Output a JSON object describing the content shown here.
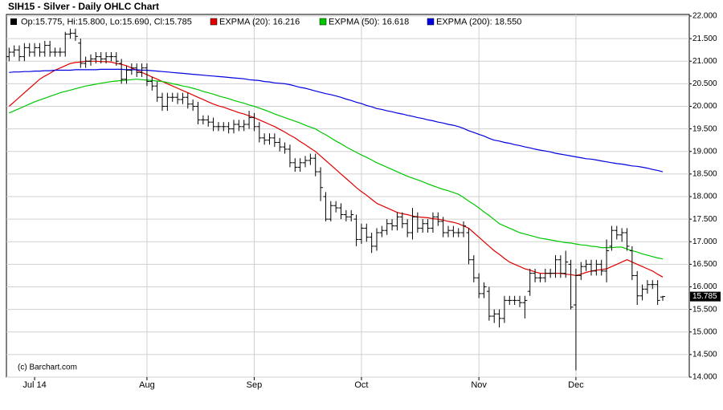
{
  "chart_data": {
    "type": "ohlc",
    "title": "SIH15 - Silver - Daily OHLC Chart",
    "ohlc_label": "Op:15.775, Hi:15.800, Lo:15.690, Cl:15.785",
    "last_price_label": "15.785",
    "annotation": "(c) Barchart.com",
    "ylim": [
      14,
      22
    ],
    "yticks": [
      {
        "value": 14,
        "label": "14.000"
      },
      {
        "value": 14.5,
        "label": "14.500"
      },
      {
        "value": 15,
        "label": "15.000"
      },
      {
        "value": 15.5,
        "label": "15.500"
      },
      {
        "value": 16,
        "label": "16.000"
      },
      {
        "value": 16.5,
        "label": "16.500"
      },
      {
        "value": 17,
        "label": "17.000"
      },
      {
        "value": 17.5,
        "label": "17.500"
      },
      {
        "value": 18,
        "label": "18.000"
      },
      {
        "value": 18.5,
        "label": "18.500"
      },
      {
        "value": 19,
        "label": "19.000"
      },
      {
        "value": 19.5,
        "label": "19.500"
      },
      {
        "value": 20,
        "label": "20.000"
      },
      {
        "value": 20.5,
        "label": "20.500"
      },
      {
        "value": 21,
        "label": "21.000"
      },
      {
        "value": 21.5,
        "label": "21.500"
      },
      {
        "value": 22,
        "label": "22.000"
      }
    ],
    "grid": true,
    "bar_color": "#000000",
    "categories": [
      null,
      null,
      null,
      null,
      null,
      "Jul 14",
      null,
      null,
      null,
      null,
      null,
      null,
      null,
      null,
      null,
      null,
      null,
      null,
      null,
      null,
      null,
      null,
      null,
      null,
      null,
      null,
      null,
      "Aug",
      null,
      null,
      null,
      null,
      null,
      null,
      null,
      null,
      null,
      null,
      null,
      null,
      null,
      null,
      null,
      null,
      null,
      null,
      null,
      null,
      "Sep",
      null,
      null,
      null,
      null,
      null,
      null,
      null,
      null,
      null,
      null,
      null,
      null,
      null,
      null,
      null,
      null,
      null,
      null,
      null,
      null,
      "Oct",
      null,
      null,
      null,
      null,
      null,
      null,
      null,
      null,
      null,
      null,
      null,
      null,
      null,
      null,
      null,
      null,
      null,
      null,
      null,
      null,
      null,
      null,
      "Nov",
      null,
      null,
      null,
      null,
      null,
      null,
      null,
      null,
      null,
      null,
      null,
      null,
      null,
      null,
      null,
      null,
      null,
      null,
      "Dec",
      null,
      null,
      null,
      null,
      null,
      null,
      null,
      null,
      null,
      null,
      null,
      null,
      null,
      null,
      null,
      null,
      null
    ],
    "open": [
      21.1,
      21.2,
      21.25,
      21.1,
      21.3,
      21.2,
      21.3,
      21.2,
      21.35,
      21.2,
      21.2,
      21.2,
      21.6,
      21.62,
      21.4,
      20.95,
      21.0,
      21.05,
      21.1,
      21.05,
      21.1,
      21.1,
      20.95,
      20.6,
      20.8,
      20.85,
      20.75,
      20.85,
      20.55,
      20.45,
      20.2,
      20.0,
      20.2,
      20.2,
      20.15,
      20.2,
      20.05,
      20.0,
      19.7,
      19.7,
      19.65,
      19.55,
      19.55,
      19.55,
      19.5,
      19.6,
      19.55,
      19.6,
      19.75,
      19.55,
      19.3,
      19.25,
      19.3,
      19.2,
      19.1,
      19.05,
      18.75,
      18.65,
      18.75,
      18.8,
      18.85,
      18.55,
      18.0,
      17.5,
      17.8,
      17.75,
      17.6,
      17.55,
      17.5,
      17.05,
      17.3,
      17.1,
      16.9,
      17.2,
      17.25,
      17.4,
      17.35,
      17.55,
      17.4,
      17.2,
      17.55,
      17.3,
      17.4,
      17.3,
      17.55,
      17.45,
      17.2,
      17.25,
      17.2,
      17.2,
      17.2,
      16.6,
      16.2,
      15.85,
      15.9,
      15.35,
      15.4,
      15.3,
      15.7,
      15.7,
      15.7,
      15.65,
      15.9,
      16.3,
      16.2,
      16.2,
      16.3,
      16.3,
      16.6,
      16.3,
      16.5,
      15.6,
      16.25,
      16.45,
      16.5,
      16.35,
      16.5,
      16.35,
      16.9,
      17.25,
      17.15,
      17.2,
      16.8,
      16.25,
      15.8,
      15.95,
      16.05,
      16.05,
      15.775
    ],
    "high": [
      21.3,
      21.35,
      21.35,
      21.4,
      21.4,
      21.4,
      21.4,
      21.45,
      21.45,
      21.3,
      21.3,
      21.65,
      21.72,
      21.72,
      21.5,
      21.1,
      21.15,
      21.2,
      21.2,
      21.2,
      21.2,
      21.2,
      21.05,
      20.9,
      20.95,
      20.95,
      20.95,
      20.95,
      20.65,
      20.55,
      20.3,
      20.3,
      20.3,
      20.3,
      20.3,
      20.3,
      20.15,
      20.1,
      19.8,
      19.8,
      19.75,
      19.65,
      19.65,
      19.65,
      19.7,
      19.7,
      19.7,
      19.9,
      19.85,
      19.65,
      19.4,
      19.4,
      19.4,
      19.3,
      19.2,
      19.15,
      18.85,
      18.85,
      18.9,
      18.95,
      18.95,
      18.65,
      18.1,
      17.9,
      17.9,
      17.85,
      17.7,
      17.7,
      17.6,
      17.4,
      17.4,
      17.2,
      17.3,
      17.35,
      17.5,
      17.5,
      17.65,
      17.65,
      17.5,
      17.75,
      17.65,
      17.5,
      17.5,
      17.65,
      17.65,
      17.55,
      17.35,
      17.35,
      17.3,
      17.45,
      17.3,
      16.7,
      16.3,
      16.1,
      16.0,
      15.5,
      15.5,
      15.8,
      15.8,
      15.8,
      15.8,
      15.8,
      16.4,
      16.4,
      16.3,
      16.4,
      16.4,
      16.7,
      16.7,
      16.8,
      16.6,
      16.4,
      16.55,
      16.6,
      16.6,
      16.6,
      16.6,
      17.05,
      17.35,
      17.35,
      17.3,
      17.3,
      16.9,
      16.35,
      16.05,
      16.15,
      16.15,
      16.15,
      15.8
    ],
    "low": [
      21.0,
      21.1,
      21.0,
      21.0,
      21.1,
      21.1,
      21.1,
      21.1,
      21.1,
      21.1,
      21.1,
      21.1,
      21.5,
      21.45,
      20.85,
      20.85,
      20.9,
      20.95,
      20.95,
      20.95,
      21.0,
      20.9,
      20.5,
      20.5,
      20.7,
      20.65,
      20.65,
      20.45,
      20.35,
      20.1,
      19.9,
      19.9,
      20.1,
      20.05,
      20.05,
      19.95,
      19.9,
      19.6,
      19.6,
      19.55,
      19.45,
      19.45,
      19.45,
      19.4,
      19.4,
      19.45,
      19.45,
      19.5,
      19.45,
      19.2,
      19.15,
      19.15,
      19.1,
      19.0,
      18.95,
      18.65,
      18.55,
      18.55,
      18.65,
      18.7,
      18.45,
      17.9,
      17.45,
      17.45,
      17.65,
      17.5,
      17.45,
      17.45,
      16.9,
      16.95,
      17.0,
      16.75,
      16.8,
      17.1,
      17.15,
      17.25,
      17.25,
      17.3,
      17.1,
      17.05,
      17.2,
      17.2,
      17.2,
      17.2,
      17.35,
      17.1,
      17.1,
      17.1,
      17.1,
      17.1,
      16.5,
      16.1,
      15.75,
      15.75,
      15.25,
      15.2,
      15.1,
      15.2,
      15.6,
      15.6,
      15.55,
      15.3,
      15.8,
      16.1,
      16.1,
      16.1,
      16.2,
      16.2,
      16.2,
      16.2,
      15.5,
      14.15,
      16.15,
      16.35,
      16.25,
      16.25,
      16.25,
      16.1,
      16.8,
      17.05,
      17.0,
      16.8,
      16.15,
      15.6,
      15.7,
      15.85,
      15.95,
      15.6,
      15.69
    ],
    "close": [
      21.2,
      21.25,
      21.1,
      21.3,
      21.2,
      21.3,
      21.2,
      21.35,
      21.2,
      21.2,
      21.2,
      21.6,
      21.62,
      21.55,
      20.95,
      21.0,
      21.05,
      21.1,
      21.05,
      21.1,
      21.1,
      21.0,
      20.6,
      20.8,
      20.85,
      20.75,
      20.85,
      20.55,
      20.45,
      20.2,
      20.0,
      20.2,
      20.2,
      20.15,
      20.2,
      20.05,
      20.0,
      19.7,
      19.7,
      19.65,
      19.55,
      19.55,
      19.55,
      19.5,
      19.6,
      19.55,
      19.6,
      19.75,
      19.55,
      19.3,
      19.25,
      19.3,
      19.2,
      19.1,
      19.05,
      18.75,
      18.65,
      18.75,
      18.8,
      18.85,
      18.55,
      18.2,
      17.5,
      17.8,
      17.75,
      17.6,
      17.55,
      17.6,
      17.05,
      17.3,
      17.1,
      16.9,
      17.2,
      17.25,
      17.4,
      17.35,
      17.55,
      17.4,
      17.2,
      17.55,
      17.3,
      17.4,
      17.3,
      17.55,
      17.45,
      17.2,
      17.25,
      17.2,
      17.2,
      17.35,
      16.6,
      16.2,
      15.85,
      16.0,
      15.35,
      15.4,
      15.3,
      15.7,
      15.7,
      15.7,
      15.65,
      15.7,
      16.3,
      16.2,
      16.2,
      16.3,
      16.3,
      16.6,
      16.3,
      16.55,
      15.55,
      16.25,
      16.45,
      16.5,
      16.35,
      16.5,
      16.35,
      16.8,
      17.25,
      17.15,
      17.2,
      16.9,
      16.25,
      15.8,
      15.95,
      16.05,
      16.05,
      15.7,
      15.785
    ],
    "series": [
      {
        "name": "EXPMA (20): 16.216",
        "color": "#e00000",
        "values": [
          20.0,
          20.1,
          20.2,
          20.3,
          20.4,
          20.5,
          20.6,
          20.67,
          20.73,
          20.8,
          20.85,
          20.9,
          20.95,
          20.97,
          20.98,
          21.0,
          21.0,
          21.0,
          20.99,
          20.99,
          20.98,
          20.95,
          20.93,
          20.9,
          20.85,
          20.8,
          20.75,
          20.7,
          20.65,
          20.6,
          20.55,
          20.5,
          20.45,
          20.4,
          20.35,
          20.3,
          20.25,
          20.2,
          20.15,
          20.1,
          20.05,
          20.01,
          19.98,
          19.94,
          19.9,
          19.86,
          19.83,
          19.79,
          19.75,
          19.7,
          19.65,
          19.6,
          19.55,
          19.49,
          19.43,
          19.36,
          19.3,
          19.22,
          19.15,
          19.07,
          19.0,
          18.9,
          18.8,
          18.7,
          18.6,
          18.5,
          18.4,
          18.3,
          18.2,
          18.11,
          18.03,
          17.94,
          17.85,
          17.8,
          17.75,
          17.7,
          17.65,
          17.62,
          17.6,
          17.57,
          17.55,
          17.54,
          17.53,
          17.51,
          17.5,
          17.48,
          17.45,
          17.43,
          17.4,
          17.35,
          17.3,
          17.2,
          17.1,
          17.0,
          16.9,
          16.8,
          16.72,
          16.63,
          16.55,
          16.5,
          16.45,
          16.4,
          16.37,
          16.33,
          16.3,
          16.3,
          16.3,
          16.3,
          16.3,
          16.28,
          16.27,
          16.25,
          16.28,
          16.32,
          16.35,
          16.37,
          16.38,
          16.4,
          16.45,
          16.5,
          16.55,
          16.6,
          16.55,
          16.5,
          16.45,
          16.4,
          16.35,
          16.28,
          16.216
        ]
      },
      {
        "name": "EXPMA (50): 16.618",
        "color": "#00c800",
        "values": [
          19.85,
          19.9,
          19.95,
          20.0,
          20.05,
          20.1,
          20.14,
          20.18,
          20.22,
          20.26,
          20.3,
          20.33,
          20.36,
          20.39,
          20.42,
          20.45,
          20.47,
          20.49,
          20.51,
          20.53,
          20.55,
          20.56,
          20.57,
          20.58,
          20.59,
          20.6,
          20.59,
          20.58,
          20.57,
          20.56,
          20.55,
          20.53,
          20.5,
          20.48,
          20.45,
          20.43,
          20.4,
          20.37,
          20.33,
          20.3,
          20.27,
          20.23,
          20.2,
          20.17,
          20.13,
          20.1,
          20.07,
          20.03,
          20.0,
          19.96,
          19.92,
          19.88,
          19.83,
          19.79,
          19.75,
          19.71,
          19.67,
          19.63,
          19.58,
          19.54,
          19.5,
          19.43,
          19.37,
          19.3,
          19.23,
          19.17,
          19.1,
          19.04,
          18.98,
          18.92,
          18.87,
          18.81,
          18.75,
          18.7,
          18.65,
          18.6,
          18.55,
          18.5,
          18.45,
          18.41,
          18.37,
          18.33,
          18.28,
          18.24,
          18.2,
          18.16,
          18.13,
          18.09,
          18.05,
          17.98,
          17.9,
          17.83,
          17.75,
          17.66,
          17.58,
          17.49,
          17.4,
          17.35,
          17.3,
          17.25,
          17.2,
          17.17,
          17.14,
          17.11,
          17.08,
          17.06,
          17.04,
          17.02,
          17.0,
          16.98,
          16.97,
          16.95,
          16.93,
          16.92,
          16.9,
          16.89,
          16.87,
          16.87,
          16.87,
          16.88,
          16.88,
          16.84,
          16.8,
          16.77,
          16.73,
          16.7,
          16.67,
          16.64,
          16.618
        ]
      },
      {
        "name": "EXPMA (200): 18.550",
        "color": "#0000e0",
        "values": [
          20.75,
          20.76,
          20.76,
          20.77,
          20.77,
          20.78,
          20.78,
          20.79,
          20.79,
          20.8,
          20.8,
          20.8,
          20.8,
          20.81,
          20.81,
          20.81,
          20.81,
          20.81,
          20.82,
          20.82,
          20.82,
          20.82,
          20.82,
          20.81,
          20.81,
          20.81,
          20.8,
          20.8,
          20.79,
          20.78,
          20.77,
          20.76,
          20.75,
          20.74,
          20.73,
          20.72,
          20.71,
          20.7,
          20.69,
          20.68,
          20.67,
          20.66,
          20.65,
          20.64,
          20.63,
          20.62,
          20.61,
          20.59,
          20.58,
          20.57,
          20.55,
          20.54,
          20.52,
          20.51,
          20.5,
          20.48,
          20.45,
          20.42,
          20.4,
          20.37,
          20.34,
          20.31,
          20.28,
          20.26,
          20.23,
          20.2,
          20.16,
          20.13,
          20.09,
          20.06,
          20.02,
          19.99,
          19.95,
          19.93,
          19.9,
          19.88,
          19.85,
          19.83,
          19.8,
          19.78,
          19.75,
          19.73,
          19.7,
          19.68,
          19.65,
          19.63,
          19.6,
          19.58,
          19.55,
          19.51,
          19.46,
          19.42,
          19.38,
          19.34,
          19.29,
          19.25,
          19.23,
          19.2,
          19.18,
          19.15,
          19.13,
          19.1,
          19.08,
          19.05,
          19.03,
          19.01,
          18.99,
          18.96,
          18.94,
          18.92,
          18.9,
          18.88,
          18.86,
          18.84,
          18.83,
          18.81,
          18.79,
          18.77,
          18.75,
          18.73,
          18.72,
          18.7,
          18.68,
          18.67,
          18.65,
          18.63,
          18.6,
          18.58,
          18.55
        ]
      }
    ]
  }
}
